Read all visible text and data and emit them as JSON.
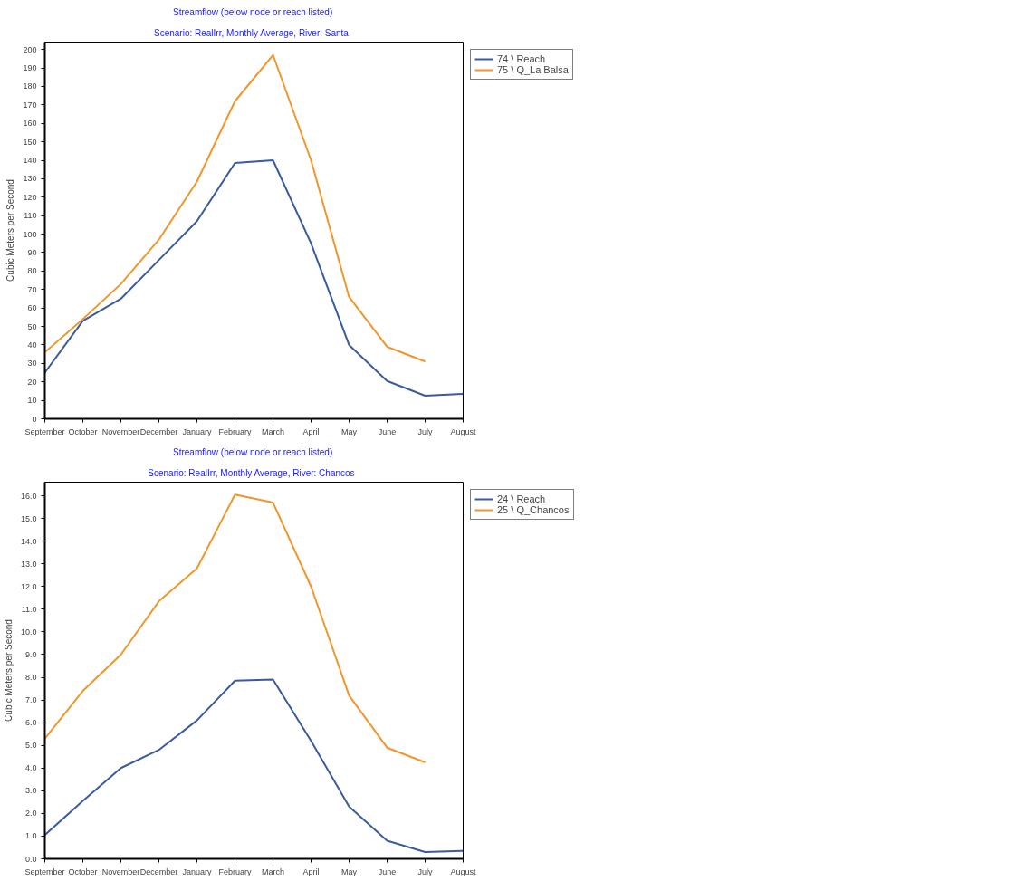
{
  "chart_data": [
    {
      "type": "line",
      "title": "Streamflow  (below node or reach listed)",
      "subtitle": "Scenario: RealIrr,  Monthly Average,  River: Santa",
      "ylabel": "Cubic Meters per Second",
      "categories": [
        "September",
        "October",
        "November",
        "December",
        "January",
        "February",
        "March",
        "April",
        "May",
        "June",
        "July",
        "August"
      ],
      "series": [
        {
          "name": "74 \\ Reach",
          "color": "#3a5ba0",
          "values": [
            25,
            53,
            65,
            86,
            107,
            138.5,
            140,
            95,
            40,
            20.5,
            12.5,
            13.5
          ]
        },
        {
          "name": "75 \\ Q_La Balsa",
          "color": "#f0962a",
          "values": [
            36,
            54,
            73,
            97,
            128.5,
            172,
            197,
            140,
            66,
            39,
            31,
            null
          ]
        }
      ],
      "ylim": [
        0,
        204
      ],
      "yticks": [
        0,
        10,
        20,
        30,
        40,
        50,
        60,
        70,
        80,
        90,
        100,
        110,
        120,
        130,
        140,
        150,
        160,
        170,
        180,
        190,
        200
      ],
      "legend": "right",
      "line_style": "solid"
    },
    {
      "type": "line",
      "title": "Streamflow  (below node or reach listed)",
      "subtitle": "Scenario: RealIrr,  Monthly Average,  River: Chancos",
      "ylabel": "Cubic Meters per Second",
      "categories": [
        "September",
        "October",
        "November",
        "December",
        "January",
        "February",
        "March",
        "April",
        "May",
        "June",
        "July",
        "August"
      ],
      "series": [
        {
          "name": "24 \\ Reach",
          "color": "#3a5ba0",
          "values": [
            1.05,
            2.55,
            4.0,
            4.8,
            6.1,
            7.85,
            7.9,
            5.2,
            2.3,
            0.8,
            0.3,
            0.35
          ]
        },
        {
          "name": "25 \\ Q_Chancos",
          "color": "#f0962a",
          "values": [
            5.3,
            7.4,
            9.0,
            11.35,
            12.8,
            16.05,
            15.7,
            12.0,
            7.2,
            4.9,
            4.25,
            null
          ]
        }
      ],
      "ylim": [
        0,
        16.6
      ],
      "yticks": [
        {
          "value": 0,
          "label": "0.0"
        },
        {
          "value": 1,
          "label": "1.0"
        },
        {
          "value": 2,
          "label": "2.0"
        },
        {
          "value": 3,
          "label": "3.0"
        },
        {
          "value": 4,
          "label": "4.0"
        },
        {
          "value": 5,
          "label": "5.0"
        },
        {
          "value": 6,
          "label": "6.0"
        },
        {
          "value": 7,
          "label": "7.0"
        },
        {
          "value": 8,
          "label": "8.0"
        },
        {
          "value": 9,
          "label": "9.0"
        },
        {
          "value": 10,
          "label": "10.0"
        },
        {
          "value": 11,
          "label": "11.0"
        },
        {
          "value": 12,
          "label": "12.0"
        },
        {
          "value": 13,
          "label": "13.0"
        },
        {
          "value": 14,
          "label": "14.0"
        },
        {
          "value": 15,
          "label": "15.0"
        },
        {
          "value": 16,
          "label": "16.0"
        }
      ],
      "legend": "right",
      "line_style": "solid"
    }
  ]
}
